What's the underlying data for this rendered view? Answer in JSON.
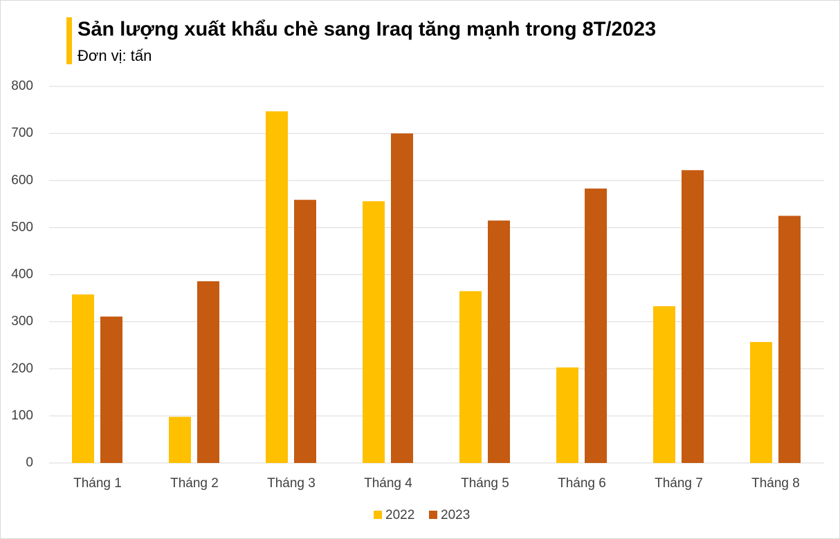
{
  "chart_data": {
    "type": "bar",
    "title": "Sản lượng xuất khẩu chè sang Iraq tăng mạnh trong 8T/2023",
    "subtitle": "Đơn vị: tấn",
    "categories": [
      "Tháng 1",
      "Tháng 2",
      "Tháng 3",
      "Tháng 4",
      "Tháng 5",
      "Tháng 6",
      "Tháng 7",
      "Tháng 8"
    ],
    "series": [
      {
        "name": "2022",
        "color": "#ffc000",
        "values": [
          358,
          98,
          747,
          556,
          365,
          203,
          333,
          257
        ]
      },
      {
        "name": "2023",
        "color": "#c55a11",
        "values": [
          311,
          386,
          559,
          700,
          515,
          583,
          622,
          525
        ]
      }
    ],
    "ylim": [
      0,
      800
    ],
    "yticks": [
      0,
      100,
      200,
      300,
      400,
      500,
      600,
      700,
      800
    ],
    "grid": true,
    "legend": "bottom"
  }
}
